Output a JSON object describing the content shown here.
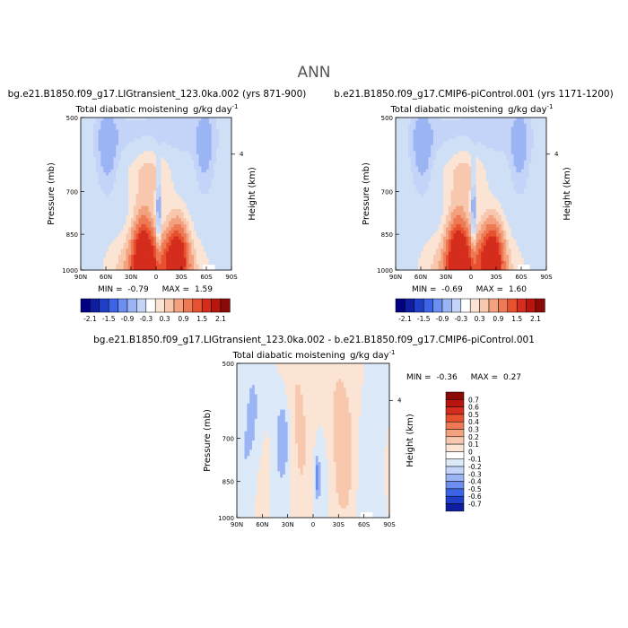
{
  "title": "ANN",
  "colors": {
    "neg": [
      "#000080",
      "#0f1ea0",
      "#1f3fc8",
      "#3c64e6",
      "#6b8ef0",
      "#9bb4f4",
      "#c3d4f8",
      "#dceaf8"
    ],
    "pos": [
      "#fbe4d4",
      "#f7c8ae",
      "#f3a17f",
      "#ee7a55",
      "#e8512f",
      "#d52d1d",
      "#b8150f",
      "#8a0a07"
    ]
  },
  "chart_data": [
    {
      "type": "heatmap",
      "case": "bg.e21.B1850.f09_g17.LIGtransient_123.0ka.002 (yrs 871-900)",
      "title": "Total diabatic moistening",
      "units": "g/kg day",
      "units_exp": "-1",
      "ylabel": "Pressure (mb)",
      "y2label": "Height (km)",
      "y2ticks": [
        "4"
      ],
      "xticks": [
        "90N",
        "60N",
        "30N",
        "0",
        "30S",
        "60S",
        "90S"
      ],
      "yticks": [
        "500",
        "700",
        "850",
        "1000"
      ],
      "stats": {
        "min_label": "MIN =",
        "min": "-0.79",
        "max_label": "MAX =",
        "max": "1.59"
      },
      "levels": [
        "-2.1",
        "-1.5",
        "-0.9",
        "-0.3",
        "0.3",
        "0.9",
        "1.5",
        "2.1"
      ],
      "min": -0.79,
      "max": 1.59
    },
    {
      "type": "heatmap",
      "case": "b.e21.B1850.f09_g17.CMIP6-piControl.001 (yrs 1171-1200)",
      "title": "Total diabatic moistening",
      "units": "g/kg day",
      "units_exp": "-1",
      "ylabel": "Pressure (mb)",
      "y2label": "Height (km)",
      "y2ticks": [
        "4"
      ],
      "xticks": [
        "90N",
        "60N",
        "30N",
        "0",
        "30S",
        "60S",
        "90S"
      ],
      "yticks": [
        "500",
        "700",
        "850",
        "1000"
      ],
      "stats": {
        "min_label": "MIN =",
        "min": "-0.69",
        "max_label": "MAX =",
        "max": "1.60"
      },
      "levels": [
        "-2.1",
        "-1.5",
        "-0.9",
        "-0.3",
        "0.3",
        "0.9",
        "1.5",
        "2.1"
      ],
      "min": -0.69,
      "max": 1.6
    },
    {
      "type": "heatmap",
      "case": "bg.e21.B1850.f09_g17.LIGtransient_123.0ka.002 - b.e21.B1850.f09_g17.CMIP6-piControl.001",
      "title": "Total diabatic moistening",
      "units": "g/kg day",
      "units_exp": "-1",
      "ylabel": "Pressure (mb)",
      "y2label": "Height (km)",
      "y2ticks": [
        "4"
      ],
      "xticks": [
        "90N",
        "60N",
        "30N",
        "0",
        "30S",
        "60S",
        "90S"
      ],
      "yticks": [
        "500",
        "700",
        "850",
        "1000"
      ],
      "stats": {
        "min_label": "MIN =",
        "min": "-0.36",
        "max_label": "MAX =",
        "max": "0.27"
      },
      "levels": [
        "0.7",
        "0.6",
        "0.5",
        "0.4",
        "0.3",
        "0.2",
        "0.1",
        "0",
        "-0.1",
        "-0.2",
        "-0.3",
        "-0.4",
        "-0.5",
        "-0.6",
        "-0.7"
      ],
      "min": -0.36,
      "max": 0.27
    }
  ]
}
